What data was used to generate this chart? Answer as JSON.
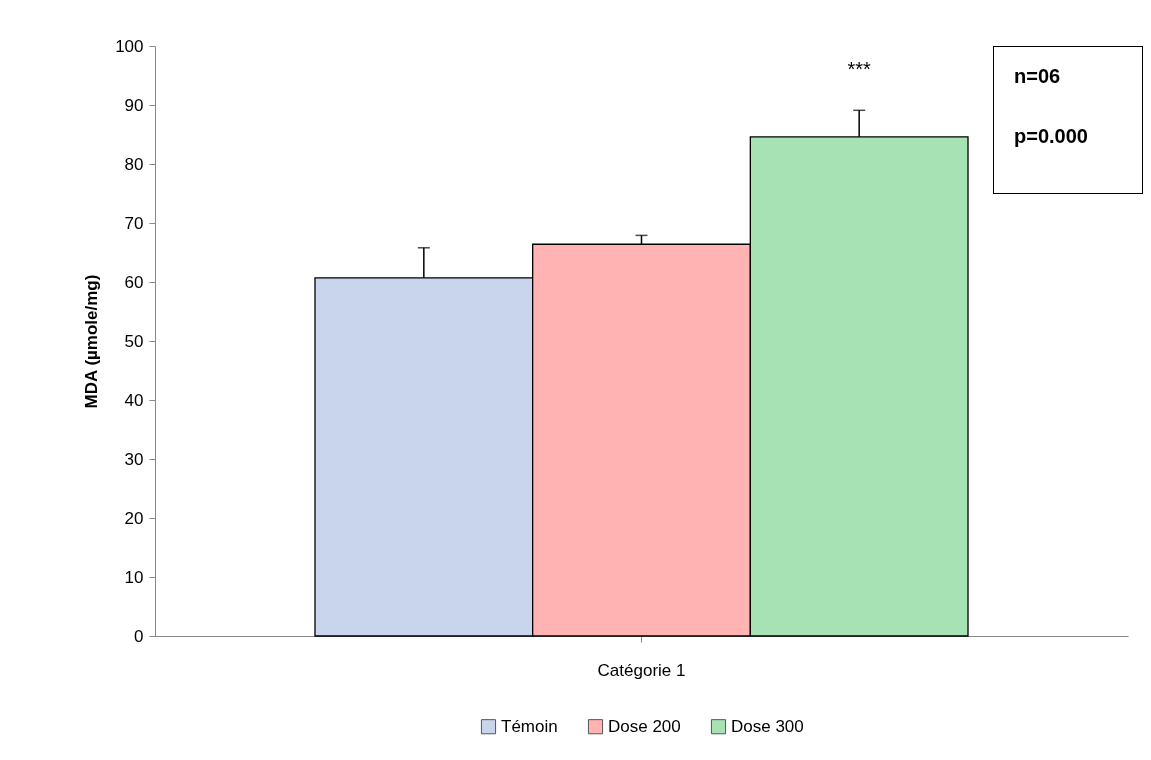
{
  "chart_data": {
    "type": "bar",
    "categories": [
      "Catégorie 1"
    ],
    "ylabel": "MDA (µmole/mg)",
    "series": [
      {
        "name": "Témoin",
        "color": "#c9d5ec",
        "values": [
          60.7
        ],
        "errors": [
          [
            60.7,
            65.8
          ]
        ]
      },
      {
        "name": "Dose 200",
        "color": "#ffb3b3",
        "values": [
          66.4
        ],
        "errors": [
          [
            66.4,
            67.9
          ]
        ]
      },
      {
        "name": "Dose 300",
        "color": "#a6e2b3",
        "values": [
          84.6
        ],
        "errors": [
          [
            84.6,
            89.1
          ]
        ],
        "value_labels": [
          "***"
        ]
      }
    ],
    "ylim": [
      0,
      100
    ],
    "yticks": [
      0,
      10,
      20,
      30,
      40,
      50,
      60,
      70,
      80,
      90,
      100
    ],
    "grid": false,
    "legend": "bottom",
    "annotations": [
      "n=06",
      "p=0.000"
    ]
  }
}
